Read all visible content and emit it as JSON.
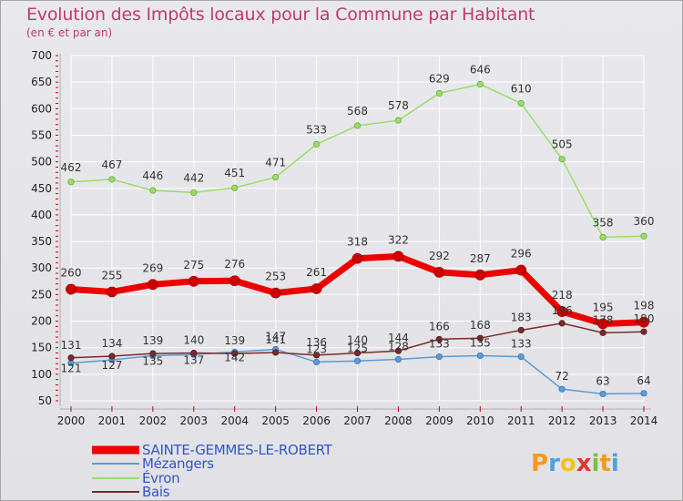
{
  "colors": {
    "accent": "#c23a6a",
    "grid": "#ffffff",
    "sainte": "#ee0000",
    "sainte_marker": "#cc0000",
    "mezangers": "#5b9bd5",
    "evron": "#99dd66",
    "bais": "#7a2b2b"
  },
  "chart_data": {
    "type": "line",
    "title": "Evolution des Impôts locaux pour la Commune par Habitant",
    "subtitle": "(en € et par an)",
    "x": [
      2000,
      2001,
      2002,
      2003,
      2004,
      2005,
      2006,
      2007,
      2008,
      2009,
      2010,
      2011,
      2012,
      2013,
      2014
    ],
    "ylim": [
      50,
      700
    ],
    "yticks": [
      50,
      100,
      150,
      200,
      250,
      300,
      350,
      400,
      450,
      500,
      550,
      600,
      650,
      700
    ],
    "grid": true,
    "series": [
      {
        "name": "SAINTE-GEMMES-LE-ROBERT",
        "key": "sainte",
        "values": [
          260,
          255,
          269,
          275,
          276,
          253,
          261,
          318,
          322,
          292,
          287,
          296,
          218,
          195,
          198
        ]
      },
      {
        "name": "Mézangers",
        "key": "mezangers",
        "values": [
          121,
          127,
          135,
          137,
          142,
          147,
          123,
          125,
          128,
          133,
          135,
          133,
          72,
          63,
          64
        ]
      },
      {
        "name": "Évron",
        "key": "evron",
        "values": [
          462,
          467,
          446,
          442,
          451,
          471,
          533,
          568,
          578,
          629,
          646,
          610,
          505,
          358,
          360
        ]
      },
      {
        "name": "Bais",
        "key": "bais",
        "values": [
          131,
          134,
          139,
          140,
          139,
          141,
          136,
          140,
          144,
          166,
          168,
          183,
          196,
          178,
          180
        ]
      }
    ]
  },
  "logo": {
    "letters": [
      "P",
      "r",
      "o",
      "x",
      "i",
      "t",
      "i"
    ],
    "colors": [
      "#f39a1e",
      "#4aa3df",
      "#f3c21e",
      "#e5322d",
      "#7cc142",
      "#f39a1e",
      "#4aa3df"
    ]
  }
}
